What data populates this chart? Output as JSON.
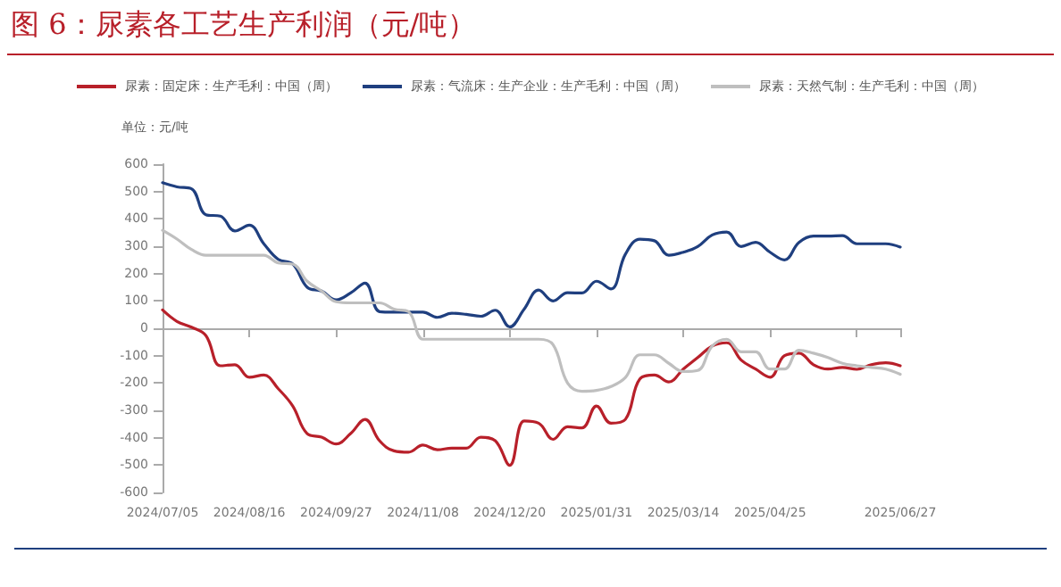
{
  "chart_data": {
    "type": "line",
    "title": "图 6：尿素各工艺生产利润（元/吨）",
    "annotations": [
      "单位：元/吨"
    ],
    "categories": [
      "2024/07/05",
      null,
      null,
      null,
      null,
      null,
      "2024/08/16",
      null,
      null,
      null,
      null,
      null,
      "2024/09/27",
      null,
      null,
      null,
      null,
      null,
      "2024/11/08",
      null,
      null,
      null,
      null,
      null,
      "2024/12/20",
      null,
      null,
      null,
      null,
      null,
      "2025/01/31",
      null,
      null,
      null,
      null,
      null,
      "2025/03/14",
      null,
      null,
      null,
      null,
      null,
      "2025/04/25",
      null,
      null,
      null,
      null,
      null,
      null,
      null,
      null,
      "2025/06/27"
    ],
    "series": [
      {
        "name": "尿素：固定床：生产毛利：中国（周）",
        "color": "#b8202a",
        "values": [
          67,
          25,
          4,
          -27,
          -137,
          -133,
          -179,
          -171,
          -221,
          -284,
          -385,
          -398,
          -423,
          -385,
          -333,
          -411,
          -448,
          -453,
          -427,
          -444,
          -438,
          -438,
          -398,
          -411,
          -501,
          -339,
          -347,
          -406,
          -360,
          -364,
          -284,
          -347,
          -333,
          -185,
          -171,
          -196,
          -149,
          -107,
          -65,
          -53,
          -116,
          -149,
          -179,
          -100,
          -91,
          -133,
          -149,
          -143,
          -150,
          -133,
          -126,
          -137
        ]
      },
      {
        "name": "尿素：气流床：生产企业：生产毛利：中国（周）",
        "color": "#1f3f7f",
        "values": [
          532,
          517,
          510,
          415,
          410,
          356,
          377,
          309,
          252,
          235,
          150,
          136,
          104,
          129,
          165,
          61,
          59,
          59,
          59,
          40,
          55,
          51,
          44,
          66,
          5,
          70,
          140,
          100,
          130,
          129,
          172,
          144,
          271,
          326,
          320,
          267,
          278,
          299,
          341,
          352,
          299,
          314,
          278,
          250,
          314,
          337,
          337,
          339,
          309,
          309,
          309,
          297
        ]
      },
      {
        "name": "尿素：天然气制：生产毛利：中国（周）",
        "color": "#bfbfbf",
        "values": [
          358,
          326,
          288,
          267,
          267,
          267,
          267,
          267,
          239,
          235,
          172,
          136,
          97,
          93,
          93,
          93,
          70,
          61,
          -40,
          -40,
          -40,
          -40,
          -40,
          -40,
          -40,
          -40,
          -40,
          -60,
          -200,
          -230,
          -227,
          -213,
          -180,
          -97,
          -97,
          -128,
          -158,
          -154,
          -65,
          -40,
          -86,
          -86,
          -149,
          -149,
          -80,
          -91,
          -107,
          -128,
          -137,
          -143,
          -149,
          -168
        ]
      }
    ],
    "ylim": [
      -600,
      600
    ],
    "yticks": [
      -600,
      -500,
      -400,
      -300,
      -200,
      -100,
      0,
      100,
      200,
      300,
      400,
      500,
      600
    ],
    "legend": "top",
    "marker": "none",
    "line_style": "solid"
  }
}
